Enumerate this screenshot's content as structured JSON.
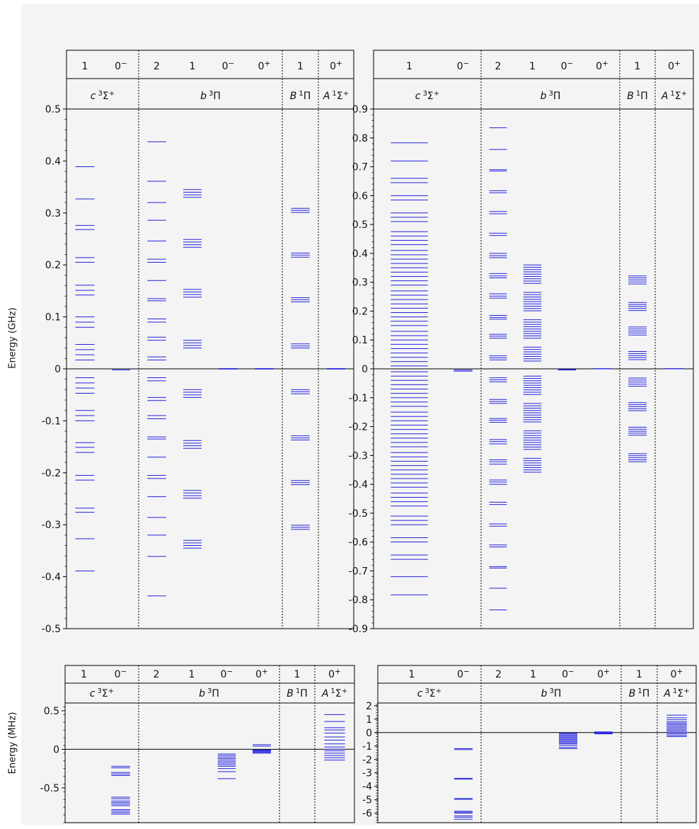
{
  "labels": {
    "ylabel_top": "Energy (GHz)",
    "ylabel_bottom": "Energy (MHz)"
  },
  "colors": {
    "level": "#2222dd",
    "axis": "#000000",
    "divider": "#000000"
  },
  "columns": [
    {
      "omega": "1",
      "state": "c 3Σ+",
      "group": 0
    },
    {
      "omega": "0−",
      "state": "",
      "group": 0
    },
    {
      "omega": "2",
      "state": "b 3Π",
      "group": 1
    },
    {
      "omega": "1",
      "state": "",
      "group": 1
    },
    {
      "omega": "0−",
      "state": "",
      "group": 1
    },
    {
      "omega": "0+",
      "state": "",
      "group": 1
    },
    {
      "omega": "1",
      "state": "B 1Π",
      "group": 2
    },
    {
      "omega": "0+",
      "state": "A 1Σ+",
      "group": 3
    }
  ],
  "chart_data": [
    {
      "type": "energy-level diagram",
      "panel": "top-left",
      "ylabel": "Energy (GHz)",
      "ylim": [
        -0.5,
        0.5
      ],
      "yticks": [
        0.5,
        0.4,
        0.3,
        0.2,
        0.1,
        0,
        -0.1,
        -0.2,
        -0.3,
        -0.4,
        -0.5
      ],
      "ytick_labels": [
        "0.5",
        "0.4",
        "0.3",
        "0.2",
        "0.1",
        "0",
        "-0.1",
        "-0.2",
        "-0.3",
        "-0.4",
        "-0.5"
      ],
      "levels": [
        [
          0.389,
          0.327,
          0.276,
          0.268,
          0.214,
          0.205,
          0.161,
          0.151,
          0.142,
          0.1,
          0.09,
          0.08,
          0.047,
          0.037,
          0.027,
          0.017,
          -0.017,
          -0.027,
          -0.037,
          -0.047,
          -0.08,
          -0.09,
          -0.1,
          -0.142,
          -0.151,
          -0.161,
          -0.205,
          -0.214,
          -0.268,
          -0.276,
          -0.327,
          -0.389
        ],
        [
          -0.002
        ],
        [
          0.437,
          0.361,
          0.32,
          0.286,
          0.246,
          0.211,
          0.205,
          0.17,
          0.135,
          0.131,
          0.096,
          0.09,
          0.061,
          0.055,
          0.023,
          0.017,
          -0.017,
          -0.023,
          -0.055,
          -0.061,
          -0.09,
          -0.096,
          -0.131,
          -0.135,
          -0.17,
          -0.205,
          -0.211,
          -0.246,
          -0.286,
          -0.32,
          -0.361,
          -0.437
        ],
        [
          0.345,
          0.34,
          0.335,
          0.33,
          0.249,
          0.244,
          0.239,
          0.234,
          0.153,
          0.148,
          0.143,
          0.138,
          0.055,
          0.05,
          0.045,
          0.04,
          -0.04,
          -0.045,
          -0.05,
          -0.055,
          -0.138,
          -0.143,
          -0.148,
          -0.153,
          -0.234,
          -0.239,
          -0.244,
          -0.249,
          -0.33,
          -0.335,
          -0.34,
          -0.345
        ],
        [
          0.0005,
          -0.0005
        ],
        [
          0.0005,
          -0.0005
        ],
        [
          0.309,
          0.305,
          0.301,
          0.223,
          0.219,
          0.215,
          0.137,
          0.133,
          0.129,
          0.048,
          0.044,
          0.04,
          -0.04,
          -0.044,
          -0.048,
          -0.129,
          -0.133,
          -0.137,
          -0.215,
          -0.219,
          -0.223,
          -0.301,
          -0.305,
          -0.309
        ],
        [
          0.0005,
          -0.0005
        ]
      ]
    },
    {
      "type": "energy-level diagram",
      "panel": "top-right",
      "ylabel": "",
      "ylim": [
        -0.9,
        0.9
      ],
      "yticks": [
        0.9,
        0.8,
        0.7,
        0.6,
        0.5,
        0.4,
        0.3,
        0.2,
        0.1,
        0,
        -0.1,
        -0.2,
        -0.3,
        -0.4,
        -0.5,
        -0.6,
        -0.7,
        -0.8,
        -0.9
      ],
      "ytick_labels": [
        "0.9",
        "0.8",
        "0.7",
        "0.6",
        "0.5",
        "0.4",
        "0.3",
        "0.2",
        "0.1",
        "0",
        "-0.1",
        "-0.2",
        "-0.3",
        "-0.4",
        "-0.5",
        "-0.6",
        "-0.7",
        "-0.8",
        "-0.9"
      ],
      "levels": [
        [
          0.783,
          0.72,
          0.66,
          0.645,
          0.6,
          0.585,
          0.54,
          0.525,
          0.51,
          0.475,
          0.46,
          0.445,
          0.43,
          0.41,
          0.395,
          0.38,
          0.365,
          0.35,
          0.335,
          0.32,
          0.305,
          0.29,
          0.27,
          0.255,
          0.24,
          0.225,
          0.21,
          0.195,
          0.18,
          0.165,
          0.15,
          0.13,
          0.115,
          0.1,
          0.085,
          0.07,
          0.055,
          0.04,
          0.025,
          0.01,
          -0.01,
          -0.025,
          -0.04,
          -0.055,
          -0.07,
          -0.085,
          -0.1,
          -0.115,
          -0.13,
          -0.15,
          -0.165,
          -0.18,
          -0.195,
          -0.21,
          -0.225,
          -0.24,
          -0.255,
          -0.27,
          -0.29,
          -0.305,
          -0.32,
          -0.335,
          -0.35,
          -0.365,
          -0.38,
          -0.395,
          -0.41,
          -0.43,
          -0.445,
          -0.46,
          -0.475,
          -0.51,
          -0.525,
          -0.54,
          -0.585,
          -0.6,
          -0.645,
          -0.66,
          -0.72,
          -0.783
        ],
        [
          -0.004,
          -0.008
        ],
        [
          0.835,
          0.76,
          0.69,
          0.685,
          0.617,
          0.61,
          0.545,
          0.537,
          0.47,
          0.462,
          0.4,
          0.392,
          0.385,
          0.33,
          0.322,
          0.315,
          0.26,
          0.252,
          0.245,
          0.185,
          0.178,
          0.172,
          0.12,
          0.113,
          0.106,
          0.045,
          0.038,
          0.031,
          -0.031,
          -0.038,
          -0.045,
          -0.106,
          -0.113,
          -0.12,
          -0.172,
          -0.178,
          -0.185,
          -0.245,
          -0.252,
          -0.26,
          -0.315,
          -0.322,
          -0.33,
          -0.385,
          -0.392,
          -0.4,
          -0.462,
          -0.47,
          -0.537,
          -0.545,
          -0.61,
          -0.617,
          -0.685,
          -0.69,
          -0.76,
          -0.835
        ],
        [
          0.36,
          0.352,
          0.344,
          0.336,
          0.328,
          0.32,
          0.312,
          0.304,
          0.296,
          0.265,
          0.257,
          0.249,
          0.241,
          0.233,
          0.225,
          0.217,
          0.209,
          0.201,
          0.17,
          0.162,
          0.154,
          0.146,
          0.138,
          0.13,
          0.122,
          0.114,
          0.106,
          0.075,
          0.067,
          0.059,
          0.051,
          0.043,
          0.035,
          0.027,
          -0.025,
          -0.033,
          -0.041,
          -0.049,
          -0.057,
          -0.065,
          -0.073,
          -0.081,
          -0.089,
          -0.12,
          -0.128,
          -0.136,
          -0.144,
          -0.152,
          -0.16,
          -0.168,
          -0.176,
          -0.184,
          -0.215,
          -0.223,
          -0.231,
          -0.239,
          -0.247,
          -0.255,
          -0.263,
          -0.271,
          -0.279,
          -0.31,
          -0.318,
          -0.326,
          -0.334,
          -0.342,
          -0.35,
          -0.358
        ],
        [
          -0.002,
          -0.004
        ],
        [
          0.001,
          0.0
        ],
        [
          0.322,
          0.315,
          0.308,
          0.301,
          0.294,
          0.23,
          0.223,
          0.216,
          0.209,
          0.202,
          0.145,
          0.138,
          0.131,
          0.124,
          0.117,
          0.06,
          0.053,
          0.046,
          0.039,
          0.032,
          -0.032,
          -0.039,
          -0.046,
          -0.053,
          -0.06,
          -0.117,
          -0.124,
          -0.131,
          -0.138,
          -0.145,
          -0.202,
          -0.209,
          -0.216,
          -0.223,
          -0.23,
          -0.294,
          -0.301,
          -0.308,
          -0.315,
          -0.322
        ],
        [
          0.001,
          0.0
        ]
      ]
    },
    {
      "type": "energy-level diagram",
      "panel": "bottom-left",
      "ylabel": "Energy (MHz)",
      "ylim": [
        -0.95,
        0.6
      ],
      "yticks": [
        0.5,
        0,
        -0.5
      ],
      "ytick_labels": [
        "0.5",
        "0",
        "-0.5"
      ],
      "levels": [
        [],
        [
          -0.22,
          -0.24,
          -0.3,
          -0.32,
          -0.34,
          -0.62,
          -0.64,
          -0.67,
          -0.69,
          -0.71,
          -0.73,
          -0.78,
          -0.8,
          -0.82,
          -0.84
        ],
        [],
        [],
        [
          -0.06,
          -0.08,
          -0.1,
          -0.12,
          -0.14,
          -0.16,
          -0.18,
          -0.2,
          -0.22,
          -0.25,
          -0.29,
          -0.38
        ],
        [
          0.06,
          0.04,
          -0.01,
          -0.02,
          -0.03,
          -0.04,
          -0.05
        ],
        [],
        [
          0.45,
          0.36,
          0.28,
          0.25,
          0.21,
          0.16,
          0.12,
          0.07,
          0.03,
          0.0,
          -0.02,
          -0.05,
          -0.08,
          -0.11,
          -0.14
        ]
      ]
    },
    {
      "type": "energy-level diagram",
      "panel": "bottom-right",
      "ylabel": "",
      "ylim": [
        -6.7,
        2.2
      ],
      "yticks": [
        2,
        1,
        0,
        -1,
        -2,
        -3,
        -4,
        -5,
        -6
      ],
      "ytick_labels": [
        "2",
        "1",
        "0",
        "-1",
        "-2",
        "-3",
        "-4",
        "-5",
        "-6"
      ],
      "levels": [
        [],
        [
          -1.2,
          -1.27,
          -3.4,
          -3.47,
          -4.9,
          -4.97,
          -5.85,
          -5.92,
          -6.0,
          -6.2,
          -6.3,
          -6.45
        ],
        [],
        [],
        [
          -0.05,
          -0.12,
          -0.2,
          -0.28,
          -0.36,
          -0.44,
          -0.52,
          -0.6,
          -0.68,
          -0.76,
          -0.84,
          -0.95,
          -1.1,
          -1.2
        ],
        [
          0.05,
          0.0,
          -0.05,
          -0.1
        ],
        [],
        [
          1.3,
          1.1,
          0.95,
          0.8,
          0.7,
          0.6,
          0.5,
          0.4,
          0.3,
          0.2,
          0.1,
          0.0,
          -0.1,
          -0.2,
          -0.3
        ]
      ]
    }
  ]
}
